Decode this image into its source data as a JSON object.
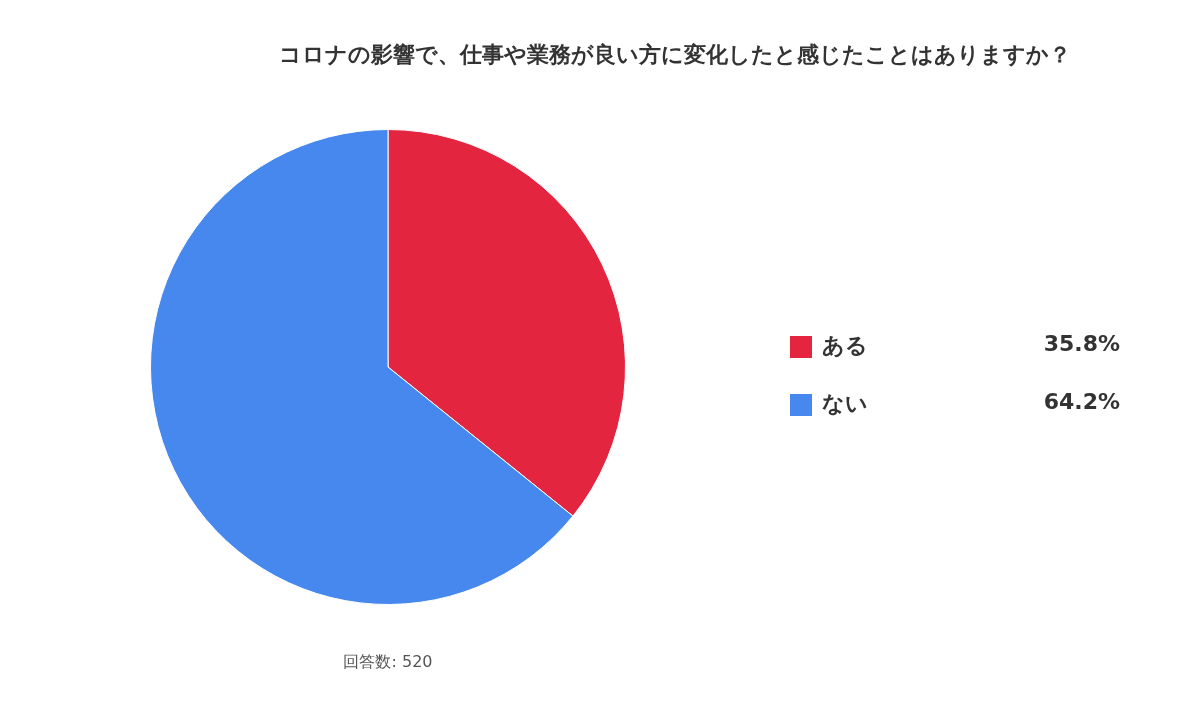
{
  "chart_data": {
    "type": "pie",
    "title": "コロナの影響で、仕事や業務が良い方に変化したと感じたことはありますか？",
    "categories": [
      "ある",
      "ない"
    ],
    "values": [
      35.8,
      64.2
    ],
    "colors": [
      "#e32540",
      "#4688ee"
    ],
    "value_labels": [
      "35.8%",
      "64.2%"
    ],
    "legend": "right",
    "annotations": [
      "回答数: 520"
    ]
  }
}
